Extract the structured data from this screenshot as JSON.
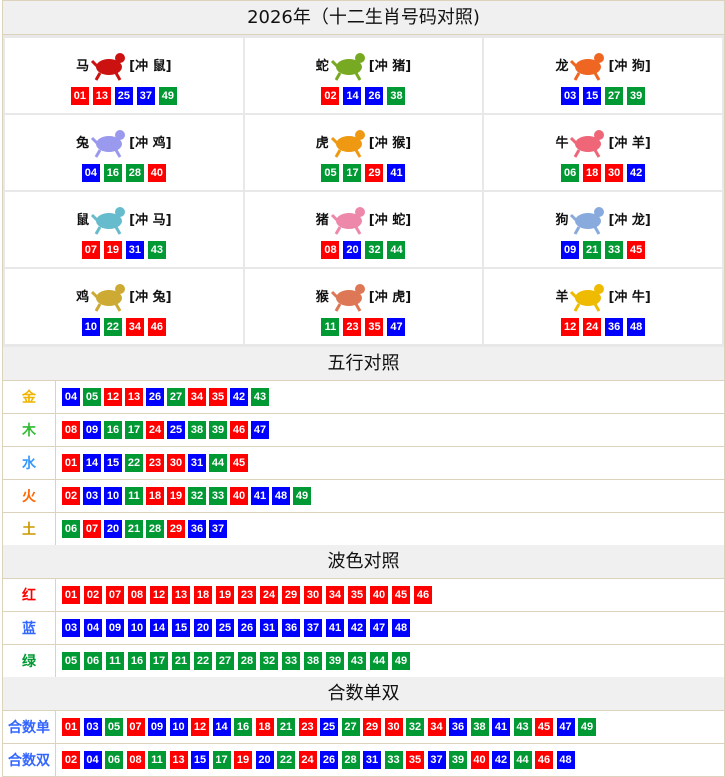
{
  "title": "2026年（十二生肖号码对照)",
  "zodiac": [
    {
      "name": "马",
      "clash": "[冲 鼠]",
      "color": "#cc1111",
      "numbers": [
        "01",
        "13",
        "25",
        "37",
        "49"
      ]
    },
    {
      "name": "蛇",
      "clash": "[冲 猪]",
      "color": "#77aa22",
      "numbers": [
        "02",
        "14",
        "26",
        "38"
      ]
    },
    {
      "name": "龙",
      "clash": "[冲 狗]",
      "color": "#ee6622",
      "numbers": [
        "03",
        "15",
        "27",
        "39"
      ]
    },
    {
      "name": "兔",
      "clash": "[冲 鸡]",
      "color": "#9999ee",
      "numbers": [
        "04",
        "16",
        "28",
        "40"
      ]
    },
    {
      "name": "虎",
      "clash": "[冲 猴]",
      "color": "#ee9911",
      "numbers": [
        "05",
        "17",
        "29",
        "41"
      ]
    },
    {
      "name": "牛",
      "clash": "[冲 羊]",
      "color": "#ee6677",
      "numbers": [
        "06",
        "18",
        "30",
        "42"
      ]
    },
    {
      "name": "鼠",
      "clash": "[冲 马]",
      "color": "#66bbcc",
      "numbers": [
        "07",
        "19",
        "31",
        "43"
      ]
    },
    {
      "name": "猪",
      "clash": "[冲 蛇]",
      "color": "#ee88aa",
      "numbers": [
        "08",
        "20",
        "32",
        "44"
      ]
    },
    {
      "name": "狗",
      "clash": "[冲 龙]",
      "color": "#88aadd",
      "numbers": [
        "09",
        "21",
        "33",
        "45"
      ]
    },
    {
      "name": "鸡",
      "clash": "[冲 兔]",
      "color": "#ccaa33",
      "numbers": [
        "10",
        "22",
        "34",
        "46"
      ]
    },
    {
      "name": "猴",
      "clash": "[冲 虎]",
      "color": "#dd7755",
      "numbers": [
        "11",
        "23",
        "35",
        "47"
      ]
    },
    {
      "name": "羊",
      "clash": "[冲 牛]",
      "color": "#eebb00",
      "numbers": [
        "12",
        "24",
        "36",
        "48"
      ]
    }
  ],
  "wuxing": {
    "title": "五行对照",
    "rows": [
      {
        "label": "金",
        "color": "#f0b400",
        "numbers": [
          "04",
          "05",
          "12",
          "13",
          "26",
          "27",
          "34",
          "35",
          "42",
          "43"
        ]
      },
      {
        "label": "木",
        "color": "#33bb33",
        "numbers": [
          "08",
          "09",
          "16",
          "17",
          "24",
          "25",
          "38",
          "39",
          "46",
          "47"
        ]
      },
      {
        "label": "水",
        "color": "#3399ff",
        "numbers": [
          "01",
          "14",
          "15",
          "22",
          "23",
          "30",
          "31",
          "44",
          "45"
        ]
      },
      {
        "label": "火",
        "color": "#ff6600",
        "numbers": [
          "02",
          "03",
          "10",
          "11",
          "18",
          "19",
          "32",
          "33",
          "40",
          "41",
          "48",
          "49"
        ]
      },
      {
        "label": "土",
        "color": "#cc9900",
        "numbers": [
          "06",
          "07",
          "20",
          "21",
          "28",
          "29",
          "36",
          "37"
        ]
      }
    ]
  },
  "wave": {
    "title": "波色对照",
    "rows": [
      {
        "label": "红",
        "color": "#ff0000",
        "key": "r",
        "numbers": [
          "01",
          "02",
          "07",
          "08",
          "12",
          "13",
          "18",
          "19",
          "23",
          "24",
          "29",
          "30",
          "34",
          "35",
          "40",
          "45",
          "46"
        ]
      },
      {
        "label": "蓝",
        "color": "#3366ff",
        "key": "b",
        "numbers": [
          "03",
          "04",
          "09",
          "10",
          "14",
          "15",
          "20",
          "25",
          "26",
          "31",
          "36",
          "37",
          "41",
          "42",
          "47",
          "48"
        ]
      },
      {
        "label": "绿",
        "color": "#009933",
        "key": "g",
        "numbers": [
          "05",
          "06",
          "11",
          "16",
          "17",
          "21",
          "22",
          "27",
          "28",
          "32",
          "33",
          "38",
          "39",
          "43",
          "44",
          "49"
        ]
      }
    ]
  },
  "oddeven": {
    "title": "合数单双",
    "rows": [
      {
        "label": "合数单",
        "color": "#3366ff",
        "numbers": [
          "01",
          "03",
          "05",
          "07",
          "09",
          "10",
          "12",
          "14",
          "16",
          "18",
          "21",
          "23",
          "25",
          "27",
          "29",
          "30",
          "32",
          "34",
          "36",
          "38",
          "41",
          "43",
          "45",
          "47",
          "49"
        ]
      },
      {
        "label": "合数双",
        "color": "#3366ff",
        "numbers": [
          "02",
          "04",
          "06",
          "08",
          "11",
          "13",
          "15",
          "17",
          "19",
          "20",
          "22",
          "24",
          "26",
          "28",
          "31",
          "33",
          "35",
          "37",
          "39",
          "40",
          "42",
          "44",
          "46",
          "48"
        ]
      }
    ]
  },
  "colors": {
    "red": "#ff0000",
    "blue": "#0000ff",
    "green": "#009933"
  }
}
